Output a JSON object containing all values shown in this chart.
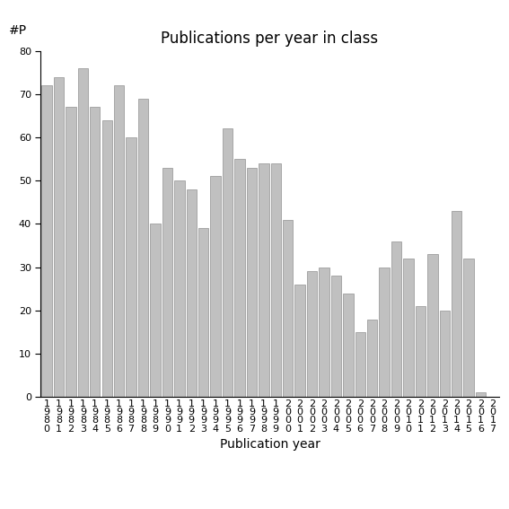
{
  "title": "Publications per year in class",
  "xlabel": "Publication year",
  "ylabel": "#P",
  "categories": [
    "1\n9\n8\n0",
    "1\n9\n8\n1",
    "1\n9\n8\n2",
    "1\n9\n8\n3",
    "1\n9\n8\n4",
    "1\n9\n8\n5",
    "1\n9\n8\n6",
    "1\n9\n8\n7",
    "1\n9\n8\n8",
    "1\n9\n8\n9",
    "1\n9\n9\n0",
    "1\n9\n9\n1",
    "1\n9\n9\n2",
    "1\n9\n9\n3",
    "1\n9\n9\n4",
    "1\n9\n9\n5",
    "1\n9\n9\n6",
    "1\n9\n9\n7",
    "1\n9\n9\n8",
    "1\n9\n9\n9",
    "2\n0\n0\n0",
    "2\n0\n0\n1",
    "2\n0\n0\n2",
    "2\n0\n0\n3",
    "2\n0\n0\n4",
    "2\n0\n0\n5",
    "2\n0\n0\n6",
    "2\n0\n0\n7",
    "2\n0\n0\n8",
    "2\n0\n0\n9",
    "2\n0\n1\n0",
    "2\n0\n1\n1",
    "2\n0\n1\n2",
    "2\n0\n1\n3",
    "2\n0\n1\n4",
    "2\n0\n1\n5",
    "2\n0\n1\n6",
    "2\n0\n1\n7"
  ],
  "values": [
    72,
    74,
    67,
    76,
    67,
    64,
    72,
    60,
    69,
    40,
    53,
    50,
    48,
    39,
    51,
    62,
    55,
    53,
    54,
    54,
    41,
    26,
    29,
    30,
    28,
    24,
    15,
    18,
    30,
    36,
    32,
    21,
    33,
    20,
    43,
    32,
    1,
    0
  ],
  "bar_color": "#c0c0c0",
  "bar_edge_color": "#909090",
  "ylim": [
    0,
    80
  ],
  "yticks": [
    0,
    10,
    20,
    30,
    40,
    50,
    60,
    70,
    80
  ],
  "bg_color": "#ffffff",
  "title_fontsize": 12,
  "axis_label_fontsize": 10,
  "tick_fontsize": 8
}
